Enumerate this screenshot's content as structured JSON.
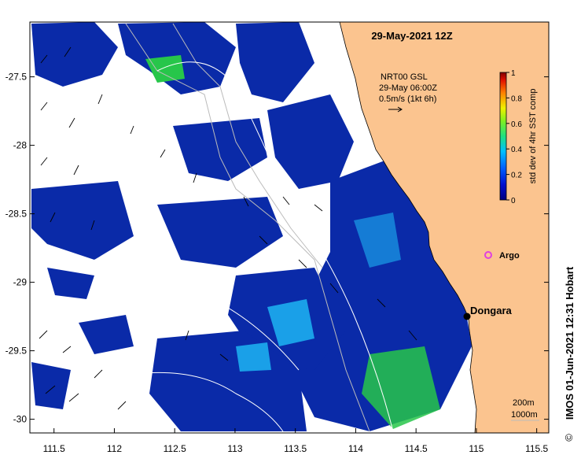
{
  "map": {
    "title": "29-May-2021 12Z",
    "x_ticks": [
      "111.5",
      "112",
      "112.5",
      "113",
      "113.5",
      "114",
      "114.5",
      "115",
      "115.5"
    ],
    "y_ticks": [
      "-27.5",
      "-28",
      "-28.5",
      "-29",
      "-29.5",
      "-30"
    ],
    "lon_range": [
      111.3,
      115.6
    ],
    "lat_range": [
      -30.1,
      -27.1
    ],
    "currents_note": {
      "line1": "NRT00 GSL",
      "line2": "29-May 06:00Z",
      "line3": "0.5m/s (1kt 6h)"
    },
    "places": {
      "argo_label": "Argo",
      "dongara_label": "Dongara"
    },
    "isobaths": {
      "line1": "200m",
      "line2": "1000m"
    },
    "colorbar": {
      "label": "std dev of 4hr SST comp",
      "ticks": [
        "1",
        "0.8",
        "0.6",
        "0.4",
        "0.2",
        "0"
      ],
      "range": [
        0,
        1
      ]
    },
    "credit": "IMOS 01-Jun-2021 12:31 Hobart",
    "copyright_symbol": "©",
    "colors": {
      "land": "#fbc48f",
      "data_low": "#0a2aa8",
      "data_mid": "#1aa0e8",
      "data_high": "#27c64a",
      "argo": "#e040e0"
    }
  }
}
